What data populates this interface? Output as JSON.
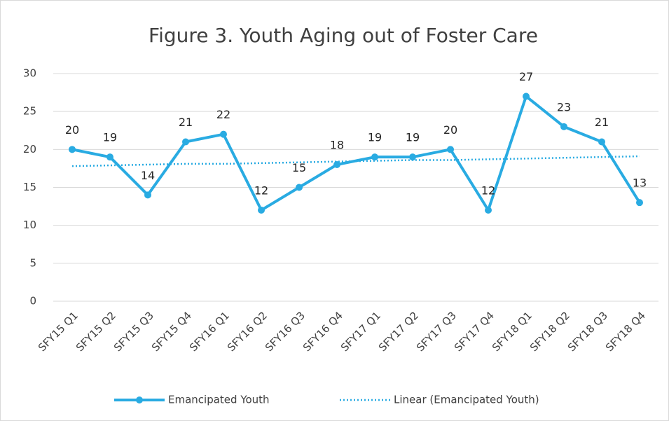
{
  "chart_data": {
    "type": "line",
    "title": "Figure 3. Youth Aging out of Foster Care",
    "categories": [
      "SFY15 Q1",
      "SFY15 Q2",
      "SFY15 Q3",
      "SFY15 Q4",
      "SFY16 Q1",
      "SFY16 Q2",
      "SFY16 Q3",
      "SFY16 Q4",
      "SFY17 Q1",
      "SFY17 Q2",
      "SFY17 Q3",
      "SFY17 Q4",
      "SFY18 Q1",
      "SFY18 Q2",
      "SFY18 Q3",
      "SFY18 Q4"
    ],
    "series": [
      {
        "name": "Emancipated Youth",
        "color": "#29abe2",
        "values": [
          20,
          19,
          14,
          21,
          22,
          12,
          15,
          18,
          19,
          19,
          20,
          12,
          27,
          23,
          21,
          13
        ]
      },
      {
        "name": "Linear (Emancipated Youth)",
        "color": "#29abe2",
        "dashed": true,
        "values": [
          17.8,
          17.9,
          18.0,
          18.1,
          18.1,
          18.2,
          18.3,
          18.4,
          18.5,
          18.6,
          18.6,
          18.7,
          18.8,
          18.9,
          19.0,
          19.1
        ]
      }
    ],
    "ylim": [
      0,
      30
    ],
    "yticks": [
      0,
      5,
      10,
      15,
      20,
      25,
      30
    ],
    "grid": true,
    "legend": "bottom"
  }
}
